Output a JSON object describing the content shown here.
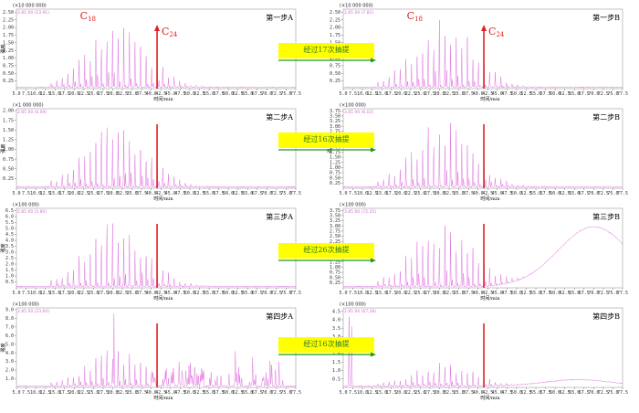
{
  "chart_data": {
    "type": "line",
    "x_ticks": [
      "5.0",
      "7.5",
      "10.0",
      "12.5",
      "15.0",
      "17.5",
      "20.0",
      "22.5",
      "25.0",
      "27.5",
      "30.0",
      "32.5",
      "35.0",
      "37.5",
      "40.0",
      "42.5",
      "45.0",
      "47.5",
      "50.0",
      "52.5",
      "55.0",
      "57.5",
      "60.0",
      "62.5",
      "65.0",
      "67.5",
      "70.0",
      "72.5",
      "75.0",
      "77.5"
    ],
    "xlabel": "时间/min",
    "ylabel": "强度",
    "series_color": "#dd66dd",
    "marker_color": "#e02020",
    "markers": {
      "c18": "C",
      "c18_sub": "18",
      "c24": "C",
      "c24_sub": "24"
    },
    "arrows": [
      {
        "label": "经过17次抽提"
      },
      {
        "label": "经过16次抽提"
      },
      {
        "label": "经过26次抽提"
      },
      {
        "label": "经过16次抽提"
      }
    ],
    "panels": [
      {
        "id": "1A",
        "title": "第一步A",
        "multiplier": "(×10 000 000)",
        "stamp": "2.85 00 (13.91)",
        "yticks": [
          "2.50",
          "2.25",
          "2.00",
          "1.75",
          "1.50",
          "1.25",
          "1.00",
          "0.75",
          "0.50",
          "0.25"
        ],
        "ymax": 2.6,
        "profile": "clean",
        "seed": 3
      },
      {
        "id": "1B",
        "title": "第一步B",
        "multiplier": "(×10 000 000)",
        "stamp": "2.85 00 (7.81)",
        "yticks": [
          "2.50",
          "2.25",
          "2.00",
          "1.75",
          "1.50",
          "1.25",
          "1.00",
          "0.75",
          "0.50",
          "0.25"
        ],
        "ymax": 2.6,
        "profile": "clean",
        "seed": 7
      },
      {
        "id": "2A",
        "title": "第二步A",
        "multiplier": "(×1 000 000)",
        "stamp": "2.85 00 (6.09)",
        "yticks": [
          "2.00",
          "1.75",
          "1.50",
          "1.25",
          "1.00",
          "0.75",
          "0.50",
          "0.25"
        ],
        "ymax": 2.05,
        "profile": "clean",
        "seed": 11
      },
      {
        "id": "2B",
        "title": "第二步B",
        "multiplier": "(×100 000)",
        "stamp": "3.85 00 (6.03)",
        "yticks": [
          "3.75",
          "3.50",
          "3.25",
          "3.00",
          "2.75",
          "2.50",
          "2.25",
          "2.00",
          "1.75",
          "1.50",
          "1.25",
          "1.00",
          "0.75",
          "0.50",
          "0.25"
        ],
        "ymax": 3.85,
        "profile": "clean",
        "seed": 13
      },
      {
        "id": "3A",
        "title": "第三步A",
        "multiplier": "(×100 000)",
        "stamp": "2.85 00 (5.80)",
        "yticks": [
          "6.5",
          "6.0",
          "5.5",
          "5.0",
          "4.5",
          "4.0",
          "3.5",
          "3.0",
          "2.5",
          "2.0",
          "1.5",
          "1.0",
          "0.5"
        ],
        "ymax": 6.7,
        "profile": "clean",
        "seed": 17
      },
      {
        "id": "3B",
        "title": "第三步B",
        "multiplier": "(×100 000)",
        "stamp": "3.85 00 (72.25)",
        "yticks": [
          "3.75",
          "3.50",
          "3.25",
          "3.00",
          "2.75",
          "2.50",
          "2.25",
          "2.00",
          "1.75",
          "1.50",
          "1.25",
          "1.00",
          "0.75",
          "0.50",
          "0.25"
        ],
        "ymax": 3.85,
        "profile": "hump",
        "seed": 19
      },
      {
        "id": "4A",
        "title": "第四步A",
        "multiplier": "(×100 000)",
        "stamp": "2.85 00 (23.60)",
        "yticks": [
          "9.0",
          "8.0",
          "7.0",
          "6.0",
          "5.0",
          "4.0",
          "3.0",
          "2.0",
          "1.0"
        ],
        "ymax": 9.2,
        "profile": "noisy",
        "seed": 23
      },
      {
        "id": "4B",
        "title": "第四步B",
        "multiplier": "(×100 000)",
        "stamp": "2.85 00 (67.28)",
        "yticks": [
          "4.5",
          "4.0",
          "3.5",
          "3.0",
          "2.5",
          "2.0",
          "1.5",
          "1.0",
          "0.5"
        ],
        "ymax": 4.7,
        "profile": "spike",
        "seed": 29
      }
    ]
  }
}
